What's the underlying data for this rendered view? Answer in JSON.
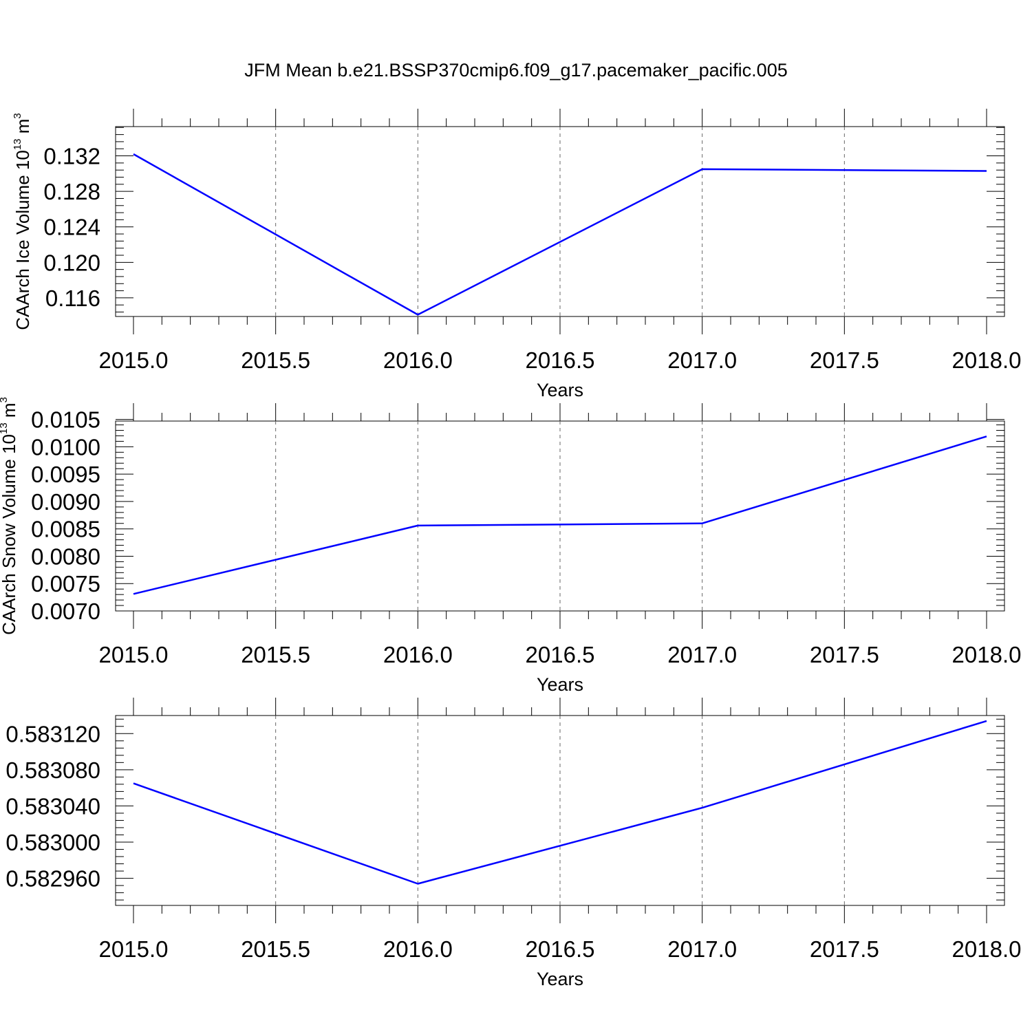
{
  "figure": {
    "title": "JFM Mean b.e21.BSSP370cmip6.f09_g17.pacemaker_pacific.005"
  },
  "chart_data": [
    {
      "type": "line",
      "xlabel": "Years",
      "ylabel": {
        "main": "CAArch Ice Volume 10",
        "sup": "13",
        "unit": " m",
        "unit_sup": "3"
      },
      "xlim": [
        2015.0,
        2018.0
      ],
      "ylim": [
        0.1139,
        0.1353
      ],
      "x_ticks": [
        "2015.0",
        "2015.5",
        "2016.0",
        "2016.5",
        "2017.0",
        "2017.5",
        "2018.0"
      ],
      "y_ticks": [
        "0.116",
        "0.120",
        "0.124",
        "0.128",
        "0.132"
      ],
      "grid": "dashed vertical at major x ticks",
      "color": "#0000ff",
      "series": [
        {
          "x": [
            2015,
            2016,
            2017,
            2018
          ],
          "y": [
            0.1322,
            0.1141,
            0.1305,
            0.1303
          ]
        }
      ]
    },
    {
      "type": "line",
      "xlabel": "Years",
      "ylabel": {
        "main": "CAArch Snow Volume 10",
        "sup": "13",
        "unit": " m",
        "unit_sup": "3"
      },
      "xlim": [
        2015.0,
        2018.0
      ],
      "ylim": [
        0.007,
        0.01047
      ],
      "x_ticks": [
        "2015.0",
        "2015.5",
        "2016.0",
        "2016.5",
        "2017.0",
        "2017.5",
        "2018.0"
      ],
      "y_ticks": [
        "0.0070",
        "0.0075",
        "0.0080",
        "0.0085",
        "0.0090",
        "0.0095",
        "0.0100",
        "0.0105"
      ],
      "grid": "dashed vertical at major x ticks",
      "color": "#0000ff",
      "series": [
        {
          "x": [
            2015,
            2016,
            2017,
            2018
          ],
          "y": [
            0.00731,
            0.00856,
            0.0086,
            0.01019
          ]
        }
      ]
    },
    {
      "type": "line",
      "xlabel": "Years",
      "ylabel": null,
      "xlim": [
        2015.0,
        2018.0
      ],
      "ylim": [
        0.58293,
        0.58314
      ],
      "x_ticks": [
        "2015.0",
        "2015.5",
        "2016.0",
        "2016.5",
        "2017.0",
        "2017.5",
        "2018.0"
      ],
      "y_ticks": [
        "0.582960",
        "0.583000",
        "0.583040",
        "0.583080",
        "0.583120"
      ],
      "grid": "dashed vertical at major x ticks",
      "color": "#0000ff",
      "series": [
        {
          "x": [
            2015,
            2016,
            2017,
            2018
          ],
          "y": [
            0.583065,
            0.582954,
            0.583038,
            0.583134
          ]
        }
      ]
    }
  ]
}
